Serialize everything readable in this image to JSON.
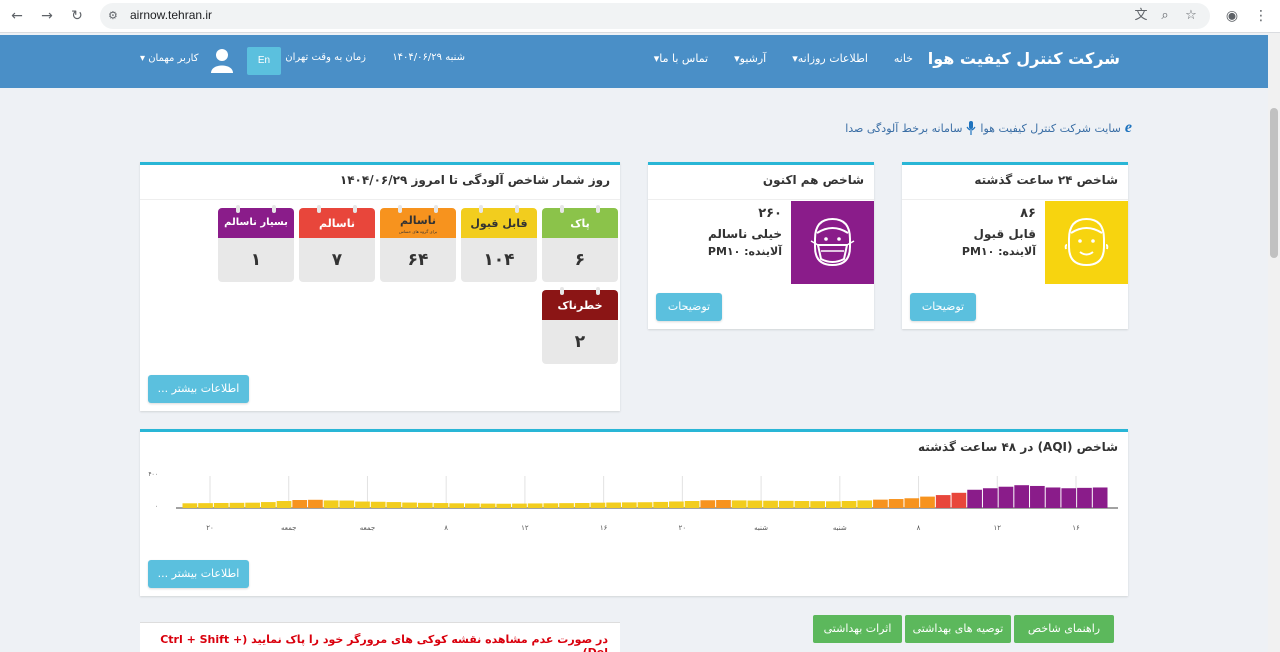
{
  "browser": {
    "url": "airnow.tehran.ir",
    "back_icon": "arrow-left",
    "forward_icon": "arrow-right",
    "reload_icon": "reload"
  },
  "header": {
    "brand": "شرکت کنترل کیفیت هوا",
    "nav": [
      "خانه",
      "اطلاعات روزانه",
      "آرشیو",
      "تماس با ما"
    ],
    "date": "شنبه ۱۴۰۴/۰۶/۲۹",
    "time_label": "زمان به وقت تهران",
    "lang_button": "En",
    "user": "کاربر مهمان",
    "bg_color": "#4a8fc7"
  },
  "links": {
    "site": "سایت شرکت کنترل کیفیت هوا",
    "voice": "سامانه برخط آلودگی صدا"
  },
  "index24": {
    "title": "شاخص ۲۴ ساعت گذشته",
    "value": "۸۶",
    "status": "قابل قبول",
    "pollutant": "آلاینده: PM۱۰",
    "button": "توضیحات",
    "color": "#f7d40f"
  },
  "indexNow": {
    "title": "شاخص هم اکنون",
    "value": "۲۶۰",
    "status": "خیلی ناسالم",
    "pollutant": "آلاینده: PM۱۰",
    "button": "توضیحات",
    "color": "#8a1c8a"
  },
  "days": {
    "title": "روز شمار شاخص آلودگی تا امروز ۱۴۰۴/۰۶/۲۹",
    "more": "اطلاعات بیشتر ...",
    "items": [
      {
        "label": "پاک",
        "sub": "",
        "count": "۶",
        "color": "#8bc34a"
      },
      {
        "label": "قابل قبول",
        "sub": "",
        "count": "۱۰۴",
        "color": "#f2cd1e"
      },
      {
        "label": "ناسالم",
        "sub": "برای گروه های حساس",
        "count": "۶۴",
        "color": "#f7931e"
      },
      {
        "label": "ناسالم",
        "sub": "",
        "count": "۷",
        "color": "#e8463b"
      },
      {
        "label": "بسیار ناسالم",
        "sub": "",
        "count": "۱",
        "color": "#8a1c8a"
      },
      {
        "label": "خطرناک",
        "sub": "",
        "count": "۲",
        "color": "#8b1515"
      }
    ]
  },
  "aqi48": {
    "title": "شاخص (AQI) در ۴۸ ساعت گذشته",
    "more": "اطلاعات بیشتر ..."
  },
  "chart_data": {
    "type": "bar",
    "title": "شاخص (AQI) در ۴۸ ساعت گذشته",
    "ylim": [
      0,
      400
    ],
    "y_ticks": [
      "۰",
      "۴۰۰"
    ],
    "x_ticks": [
      "۲۰",
      "جمعه",
      "جمعه",
      "۸",
      "۱۲",
      "۱۶",
      "۲۰",
      "شنبه",
      "شنبه",
      "۸",
      "۱۲",
      "۱۶"
    ],
    "grid": true,
    "values": [
      62,
      64,
      66,
      68,
      70,
      78,
      92,
      105,
      108,
      100,
      98,
      85,
      82,
      78,
      72,
      68,
      65,
      62,
      60,
      58,
      56,
      58,
      60,
      62,
      64,
      66,
      70,
      72,
      74,
      76,
      80,
      86,
      92,
      102,
      105,
      100,
      98,
      96,
      94,
      92,
      90,
      88,
      92,
      100,
      110,
      118,
      128,
      150,
      170,
      200,
      240,
      260,
      280,
      300,
      290,
      270,
      260,
      265,
      270
    ],
    "colors": {
      "good": "#8bc34a",
      "moderate": "#f2cd1e",
      "sensitive": "#f7931e",
      "unhealthy": "#e8463b",
      "very_unhealthy": "#8a1c8a",
      "hazardous": "#8b1515"
    }
  },
  "footer": {
    "warning": "در صورت عدم مشاهده نقشه کوکی های مرورگر خود را پاک نمایید (Ctrl + Shift + Del)",
    "buttons": [
      "راهنمای شاخص",
      "توصیه های بهداشتی",
      "اثرات بهداشتی"
    ]
  }
}
